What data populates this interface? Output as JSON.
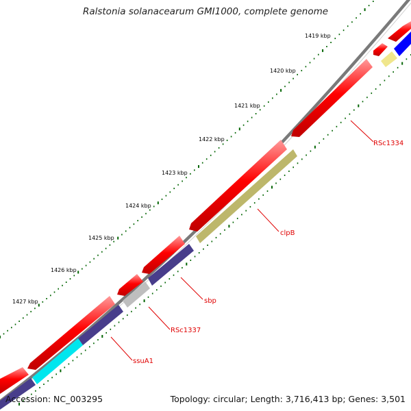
{
  "title": "Ralstonia solanacearum GMI1000, complete genome",
  "footer": {
    "accession": "Accession: NC_003295",
    "summary": "Topology: circular; Length: 3,716,413 bp; Genes: 3,501"
  },
  "tick_labels": [
    "1419 kbp",
    "1420 kbp",
    "1421 kbp",
    "1422 kbp",
    "1423 kbp",
    "1424 kbp",
    "1425 kbp",
    "1426 kbp",
    "1427 kbp"
  ],
  "gene_labels": [
    "RSc1334",
    "clpB",
    "sbp",
    "RSc1337",
    "ssuA1"
  ],
  "colors": {
    "backbone": "#7a7a7a",
    "cds_forward": "#ff0000",
    "ssuA1": "#00e6ee",
    "clpB": "#bdb76b",
    "sbp": "#483d8b",
    "RSc1337": "#bebebe",
    "RSc1334_feature": "#f0e68c",
    "other_feature": "#0000ff",
    "tick_dots": "#006400",
    "gene_label": "#e00000"
  }
}
